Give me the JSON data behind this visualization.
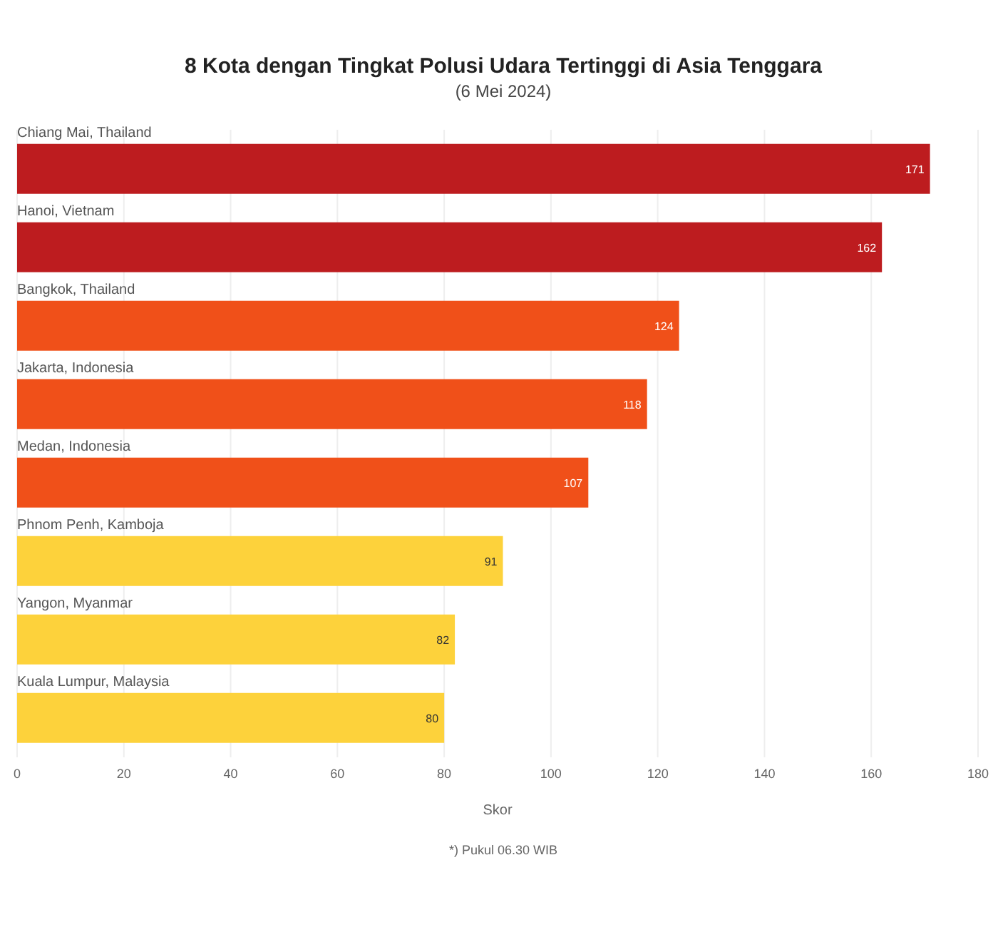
{
  "chart_data": {
    "type": "bar",
    "orientation": "horizontal",
    "title": "8 Kota dengan Tingkat Polusi Udara Tertinggi di Asia Tenggara",
    "subtitle": "(6 Mei 2024)",
    "categories": [
      "Chiang Mai, Thailand",
      "Hanoi, Vietnam",
      "Bangkok, Thailand",
      "Jakarta, Indonesia",
      "Medan, Indonesia",
      "Phnom Penh, Kamboja",
      "Yangon, Myanmar",
      "Kuala Lumpur, Malaysia"
    ],
    "values": [
      171,
      162,
      124,
      118,
      107,
      91,
      82,
      80
    ],
    "colors": [
      "#bd1c1f",
      "#bd1c1f",
      "#f05019",
      "#f05019",
      "#f05019",
      "#fdd23b",
      "#fdd23b",
      "#fdd23b"
    ],
    "xlim": [
      0,
      180
    ],
    "xticks": [
      0,
      20,
      40,
      60,
      80,
      100,
      120,
      140,
      160,
      180
    ],
    "xlabel": "Skor",
    "grid": "x",
    "data_labels": true,
    "annotations": [
      "*) Pukul 06.30 WIB"
    ]
  }
}
